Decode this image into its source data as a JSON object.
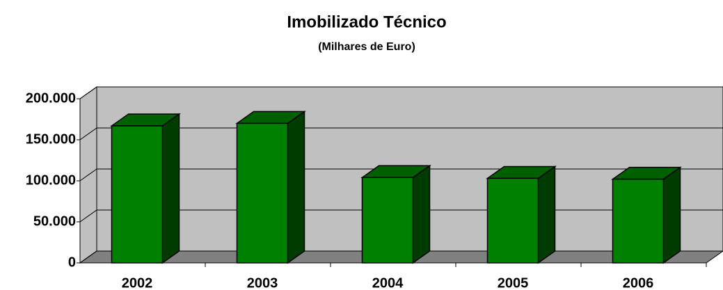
{
  "chart_data": {
    "type": "bar3d",
    "title": "Imobilizado Técnico",
    "subtitle": "(Milhares de Euro)",
    "categories": [
      "2002",
      "2003",
      "2004",
      "2005",
      "2006"
    ],
    "values": [
      167000,
      170000,
      104000,
      103000,
      102000
    ],
    "color": "#008000",
    "ylim": [
      0,
      200000
    ],
    "yticks": [
      {
        "value": 0,
        "label": "0"
      },
      {
        "value": 50000,
        "label": "50.000"
      },
      {
        "value": 100000,
        "label": "100.000"
      },
      {
        "value": 150000,
        "label": "150.000"
      },
      {
        "value": 200000,
        "label": "200.000"
      }
    ],
    "grid": true
  }
}
